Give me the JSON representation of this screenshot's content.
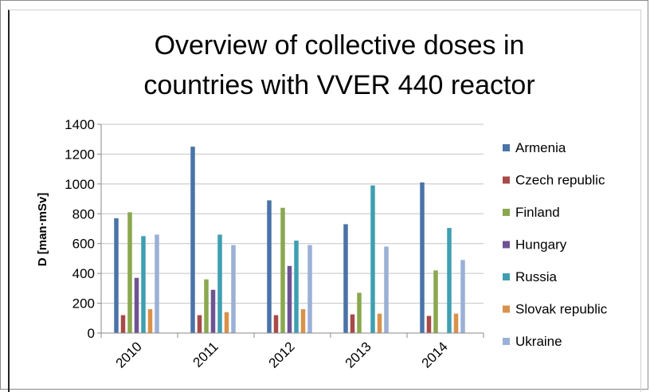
{
  "chart_data": {
    "type": "bar",
    "title_lines": [
      "Overview of collective doses in",
      "countries with VVER 440 reactor"
    ],
    "ylabel": "D [man·mSv]",
    "xlabel": "",
    "categories": [
      "2010",
      "2011",
      "2012",
      "2013",
      "2014"
    ],
    "ylim": [
      0,
      1400
    ],
    "yticks": [
      0,
      200,
      400,
      600,
      800,
      1000,
      1200,
      1400
    ],
    "grid": true,
    "legend_position": "right",
    "series": [
      {
        "name": "Armenia",
        "color": "#4a74a8",
        "values": [
          770,
          1250,
          890,
          730,
          1010
        ]
      },
      {
        "name": "Czech republic",
        "color": "#a84a48",
        "values": [
          120,
          120,
          120,
          125,
          115
        ]
      },
      {
        "name": "Finland",
        "color": "#8aa84e",
        "values": [
          810,
          360,
          840,
          270,
          420
        ]
      },
      {
        "name": "Hungary",
        "color": "#6e5394",
        "values": [
          370,
          290,
          450,
          0,
          0
        ]
      },
      {
        "name": "Russia",
        "color": "#3f9fb2",
        "values": [
          650,
          660,
          620,
          990,
          705
        ]
      },
      {
        "name": "Slovak republic",
        "color": "#d9914a",
        "values": [
          160,
          140,
          160,
          130,
          130
        ]
      },
      {
        "name": "Ukraine",
        "color": "#9ab0d6",
        "values": [
          660,
          590,
          590,
          580,
          490
        ]
      }
    ]
  }
}
